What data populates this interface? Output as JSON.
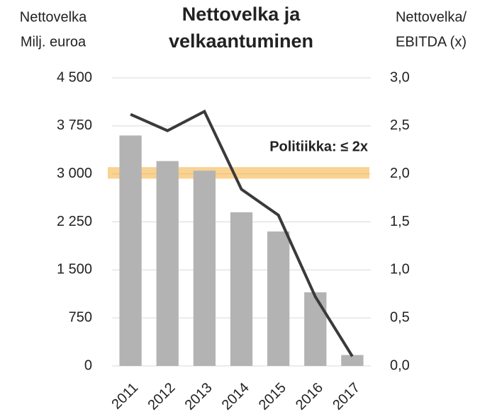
{
  "chart_data": {
    "type": "bar_line",
    "title": [
      "Nettovelka ja",
      "velkaantuminen"
    ],
    "y_label": [
      "Nettovelka",
      "Milj. euroa"
    ],
    "y2_label": [
      "Nettovelka/",
      "EBITDA (x)"
    ],
    "categories": [
      "2011",
      "2012",
      "2013",
      "2014",
      "2015",
      "2016",
      "2017"
    ],
    "series": [
      {
        "name": "Nettovelka",
        "kind": "bar",
        "color": "#b3b3b3",
        "values": [
          3600,
          3200,
          3050,
          2400,
          2100,
          1150,
          170
        ]
      },
      {
        "name": "Nettovelka/EBITDA",
        "kind": "line",
        "axis": "y2",
        "color": "#3a3a3a",
        "values": [
          2.62,
          2.45,
          2.65,
          1.84,
          1.57,
          0.72,
          0.1
        ]
      }
    ],
    "ylim": [
      0,
      4500
    ],
    "yticks": [
      0,
      750,
      {
        "value": 1500,
        "label": "1 500"
      },
      {
        "value": 2250,
        "label": "2 250"
      },
      {
        "value": 3000,
        "label": "3 000"
      },
      {
        "value": 3750,
        "label": "3 750"
      },
      {
        "value": 4500,
        "label": "4 500"
      }
    ],
    "y2lim": [
      0,
      3
    ],
    "y2ticks": [
      {
        "value": 0,
        "label": "0,0"
      },
      {
        "value": 0.5,
        "label": "0,5"
      },
      {
        "value": 1,
        "label": "1,0"
      },
      {
        "value": 1.5,
        "label": "1,5"
      },
      {
        "value": 2,
        "label": "2,0"
      },
      {
        "value": 2.5,
        "label": "2,5"
      },
      {
        "value": 3,
        "label": "3,0"
      }
    ],
    "grid": true,
    "policy": {
      "label": "Politiikka: ≤ 2x",
      "band": [
        1.95,
        2.07
      ],
      "color": "#f5a623"
    }
  }
}
